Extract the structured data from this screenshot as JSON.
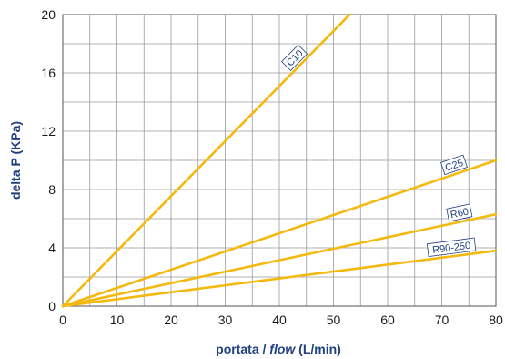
{
  "chart_data": {
    "type": "line",
    "xlabel_prefix": "portata / ",
    "xlabel_italic": "flow",
    "xlabel_suffix": " (L/min)",
    "ylabel": "delta P (KPa)",
    "xlim": [
      0,
      80
    ],
    "ylim": [
      0,
      20
    ],
    "x_ticks": [
      0,
      10,
      20,
      30,
      40,
      50,
      60,
      70,
      80
    ],
    "y_ticks": [
      0,
      4,
      8,
      12,
      16,
      20
    ],
    "grid": true,
    "series": [
      {
        "name": "C10",
        "x": [
          0,
          53
        ],
        "y": [
          0,
          20
        ]
      },
      {
        "name": "C25",
        "x": [
          0,
          80
        ],
        "y": [
          0,
          10
        ]
      },
      {
        "name": "R60",
        "x": [
          0,
          80
        ],
        "y": [
          0,
          6.3
        ]
      },
      {
        "name": "R90-250",
        "x": [
          0,
          80
        ],
        "y": [
          0,
          3.8
        ]
      }
    ]
  },
  "colors": {
    "line": "#f4b90d",
    "grid": "#9a9a9a",
    "axis_text": "#1f3f7f",
    "label_border": "#1f3f7f"
  }
}
